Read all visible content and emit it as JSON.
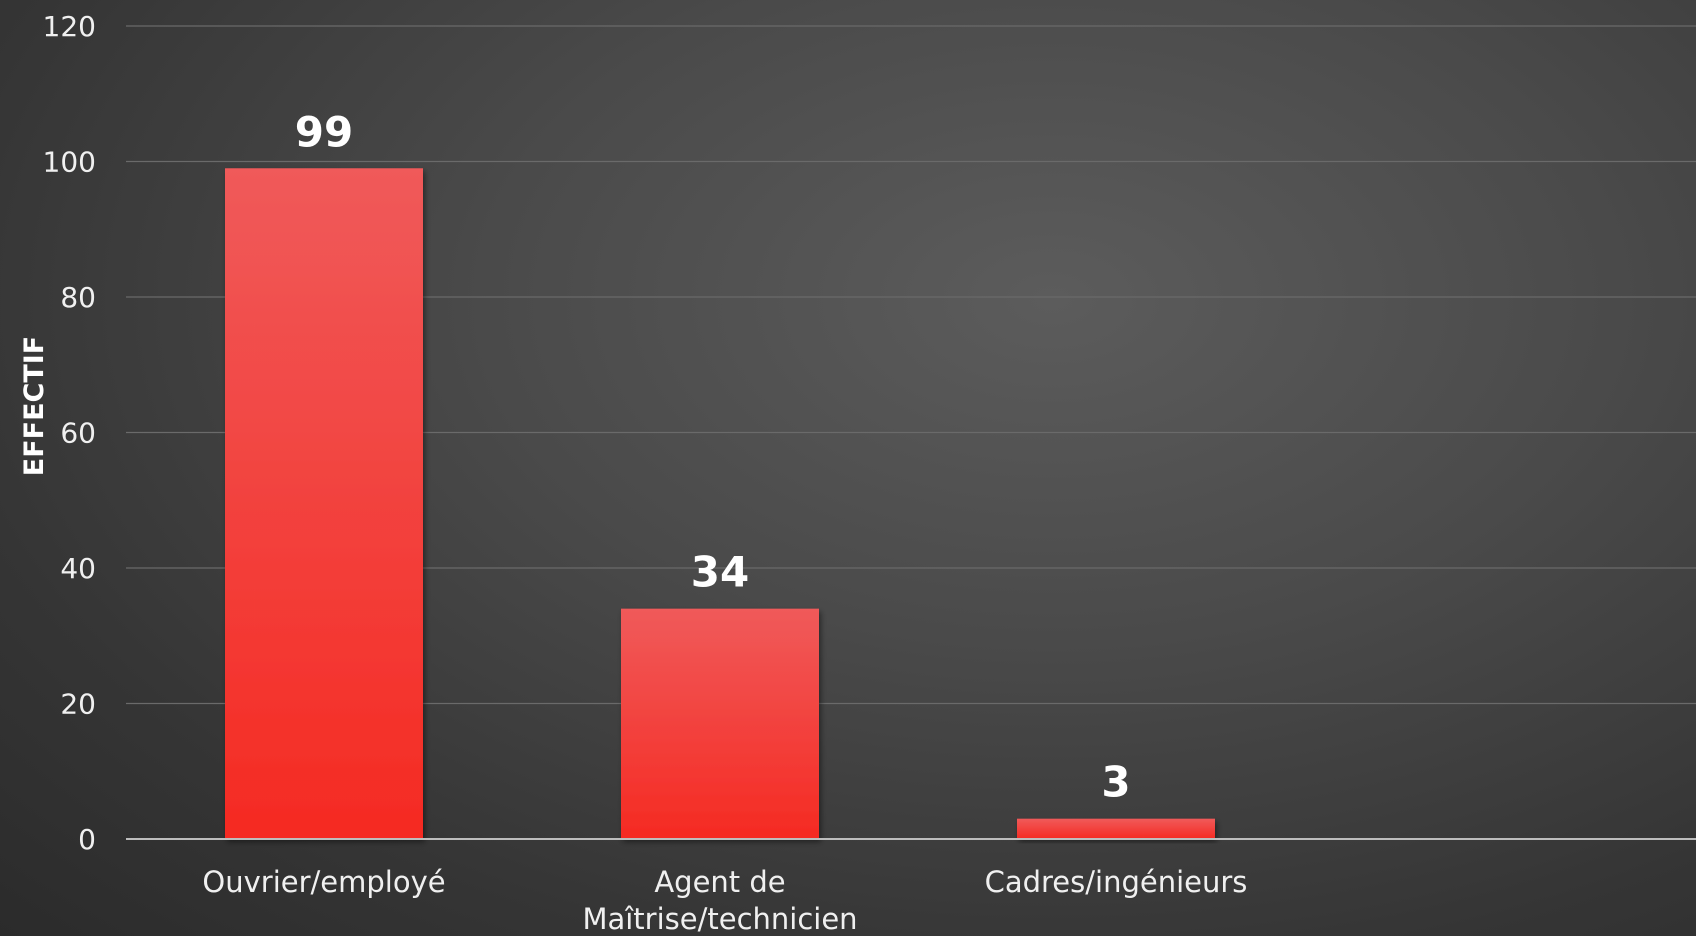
{
  "chart_data": {
    "type": "bar",
    "title": "",
    "xlabel": "",
    "ylabel": "EFFECTIF",
    "categories": [
      [
        "Ouvrier/employé"
      ],
      [
        "Agent de",
        "Maîtrise/technicien"
      ],
      [
        "Cadres/ingénieurs"
      ]
    ],
    "values": [
      99,
      34,
      3
    ],
    "data_labels": [
      "99",
      "34",
      "3"
    ],
    "ylim": [
      0,
      120
    ],
    "yticks": [
      0,
      20,
      40,
      60,
      80,
      100,
      120
    ],
    "grid": true,
    "legend": "none",
    "colors": {
      "bar_top": "#f05a5a",
      "bar_bottom": "#f52a22",
      "grid": "#6a6a6a",
      "axis": "#bdbdbd",
      "text": "#f0f0f0"
    }
  }
}
